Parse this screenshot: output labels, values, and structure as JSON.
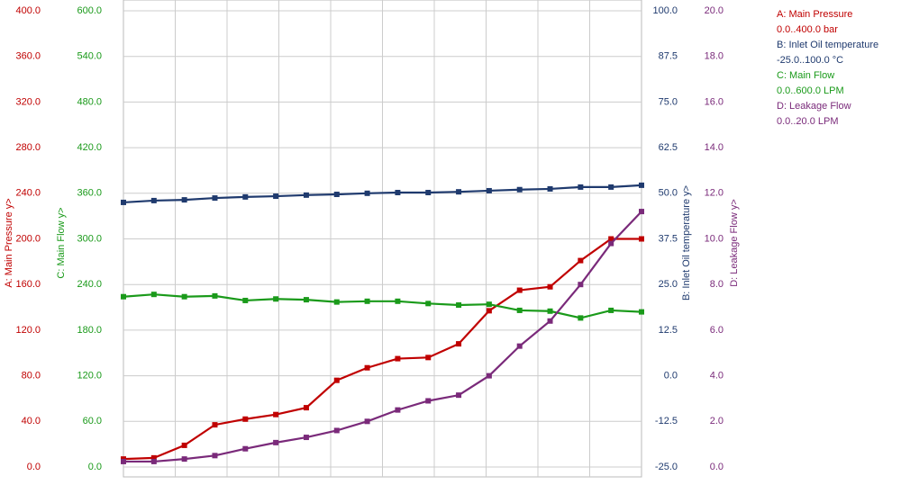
{
  "chart_data": {
    "type": "line",
    "grid": true,
    "categories": [
      null,
      null,
      null,
      null,
      null,
      null,
      null,
      null,
      null,
      null,
      null,
      null,
      null,
      null,
      null,
      null,
      null,
      null
    ],
    "axes": [
      {
        "label": "A: Main Pressure y>",
        "ylim": [
          0,
          400
        ],
        "yticks": [
          {
            "value": 0,
            "label": "0.0"
          },
          {
            "value": 40,
            "label": "40.0"
          },
          {
            "value": 80,
            "label": "80.0"
          },
          {
            "value": 120,
            "label": "120.0"
          },
          {
            "value": 160,
            "label": "160.0"
          },
          {
            "value": 200,
            "label": "200.0"
          },
          {
            "value": 240,
            "label": "240.0"
          },
          {
            "value": 280,
            "label": "280.0"
          },
          {
            "value": 320,
            "label": "320.0"
          },
          {
            "value": 360,
            "label": "360.0"
          },
          {
            "value": 400,
            "label": "400.0"
          }
        ]
      },
      {
        "label": "B: Inlet Oil temperature y>",
        "ylim": [
          -25,
          100
        ],
        "yticks": [
          {
            "value": -25,
            "label": "-25.0"
          },
          {
            "value": -12.5,
            "label": "-12.5"
          },
          {
            "value": 0,
            "label": "0.0"
          },
          12.5,
          {
            "value": 25,
            "label": "25.0"
          },
          37.5,
          {
            "value": 50,
            "label": "50.0"
          },
          62.5,
          {
            "value": 75,
            "label": "75.0"
          },
          87.5,
          {
            "value": 100,
            "label": "100.0"
          }
        ]
      },
      {
        "label": "C: Main Flow y>",
        "ylim": [
          0,
          600
        ],
        "yticks": [
          {
            "value": 0,
            "label": "0.0"
          },
          {
            "value": 60,
            "label": "60.0"
          },
          {
            "value": 120,
            "label": "120.0"
          },
          {
            "value": 180,
            "label": "180.0"
          },
          {
            "value": 240,
            "label": "240.0"
          },
          {
            "value": 300,
            "label": "300.0"
          },
          {
            "value": 360,
            "label": "360.0"
          },
          {
            "value": 420,
            "label": "420.0"
          },
          {
            "value": 480,
            "label": "480.0"
          },
          {
            "value": 540,
            "label": "540.0"
          },
          {
            "value": 600,
            "label": "600.0"
          }
        ]
      },
      {
        "label": "D: Leakage Flow y>",
        "ylim": [
          0,
          20
        ],
        "yticks": [
          {
            "value": 0,
            "label": "0.0"
          },
          {
            "value": 2,
            "label": "2.0"
          },
          {
            "value": 4,
            "label": "4.0"
          },
          {
            "value": 6,
            "label": "6.0"
          },
          {
            "value": 8,
            "label": "8.0"
          },
          {
            "value": 10,
            "label": "10.0"
          },
          {
            "value": 12,
            "label": "12.0"
          },
          {
            "value": 14,
            "label": "14.0"
          },
          {
            "value": 16,
            "label": "16.0"
          },
          {
            "value": 18,
            "label": "18.0"
          },
          {
            "value": 20,
            "label": "20.0"
          }
        ]
      }
    ],
    "series": [
      {
        "name": "A: Main Pressure",
        "range_label": "0.0..400.0 bar",
        "color": "#c00000",
        "axis": 0,
        "values": [
          7,
          8,
          19,
          37,
          42,
          46,
          52,
          76,
          87,
          95,
          96,
          108,
          137,
          155,
          158,
          181,
          200,
          200
        ]
      },
      {
        "name": "B: Inlet Oil temperature",
        "range_label": "-25.0..100.0 °C",
        "color": "#1f3a6e",
        "axis": 1,
        "values": [
          47.5,
          48,
          48.2,
          48.7,
          49,
          49.2,
          49.5,
          49.7,
          50,
          50.2,
          50.2,
          50.4,
          50.7,
          51,
          51.2,
          51.7,
          51.7,
          52.2
        ]
      },
      {
        "name": "C: Main Flow",
        "range_label": "0.0..600.0 LPM",
        "color": "#1a9a1a",
        "axis": 2,
        "values": [
          224,
          227,
          224,
          225,
          219,
          221,
          220,
          217,
          218,
          218,
          215,
          213,
          214,
          206,
          205,
          196,
          206,
          204
        ]
      },
      {
        "name": "D: Leakage Flow",
        "range_label": "0.0..20.0 LPM",
        "color": "#7a2a7a",
        "axis": 3,
        "values": [
          0.24,
          0.24,
          0.35,
          0.5,
          0.8,
          1.07,
          1.3,
          1.6,
          2.0,
          2.5,
          2.9,
          3.15,
          4.0,
          5.3,
          6.4,
          8.0,
          9.8,
          11.2
        ]
      }
    ]
  }
}
